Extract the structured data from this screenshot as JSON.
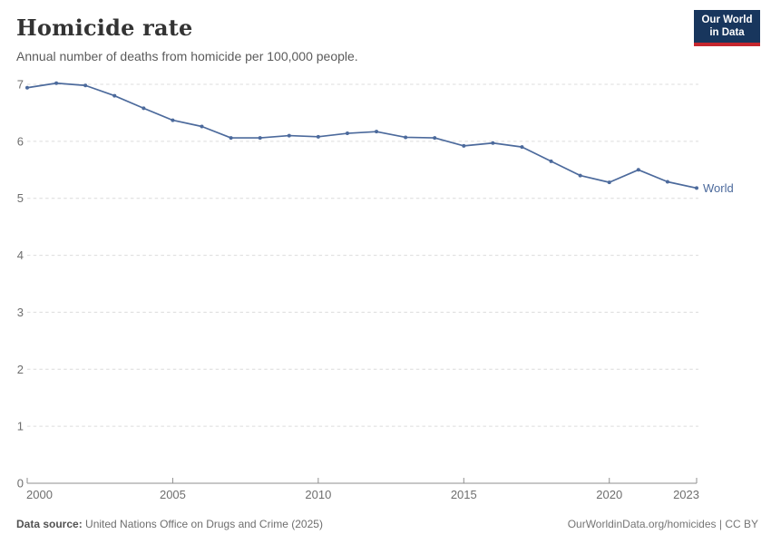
{
  "header": {
    "title": "Homicide rate",
    "subtitle": "Annual number of deaths from homicide per 100,000 people.",
    "logo": {
      "line1": "Our World",
      "line2": "in Data"
    }
  },
  "colors": {
    "series": "#4c6a9c",
    "gridline": "#dcdcdc",
    "axis": "#8f8f8f",
    "tick_label": "#6e6e6e",
    "logo_bg": "#18365d",
    "logo_accent": "#c5272e"
  },
  "chart_data": {
    "type": "line",
    "title": "Homicide rate",
    "subtitle": "Annual number of deaths from homicide per 100,000 people.",
    "xlabel": "",
    "ylabel": "",
    "xlim": [
      2000,
      2023
    ],
    "ylim": [
      0,
      7
    ],
    "grid": "horizontal-dashed",
    "legend_position": "end-of-line-label",
    "x": [
      2000,
      2001,
      2002,
      2003,
      2004,
      2005,
      2006,
      2007,
      2008,
      2009,
      2010,
      2011,
      2012,
      2013,
      2014,
      2015,
      2016,
      2017,
      2018,
      2019,
      2020,
      2021,
      2022,
      2023
    ],
    "series": [
      {
        "name": "World",
        "color": "#4c6a9c",
        "values": [
          6.94,
          7.02,
          6.98,
          6.8,
          6.58,
          6.37,
          6.26,
          6.06,
          6.06,
          6.1,
          6.08,
          6.14,
          6.17,
          6.07,
          6.06,
          5.92,
          5.97,
          5.9,
          5.65,
          5.4,
          5.28,
          5.5,
          5.29,
          5.18
        ]
      }
    ],
    "x_ticks": [
      2000,
      2005,
      2010,
      2015,
      2020,
      2023
    ],
    "x_tick_labels": [
      "2000",
      "2005",
      "2010",
      "2015",
      "2020",
      "2023"
    ],
    "y_ticks": [
      0,
      1,
      2,
      3,
      4,
      5,
      6,
      7
    ],
    "y_tick_labels": [
      "0",
      "1",
      "2",
      "3",
      "4",
      "5",
      "6",
      "7"
    ],
    "end_label": "World"
  },
  "footer": {
    "source_label": "Data source:",
    "source_text": " United Nations Office on Drugs and Crime (2025)",
    "rights": "OurWorldinData.org/homicides | CC BY"
  }
}
